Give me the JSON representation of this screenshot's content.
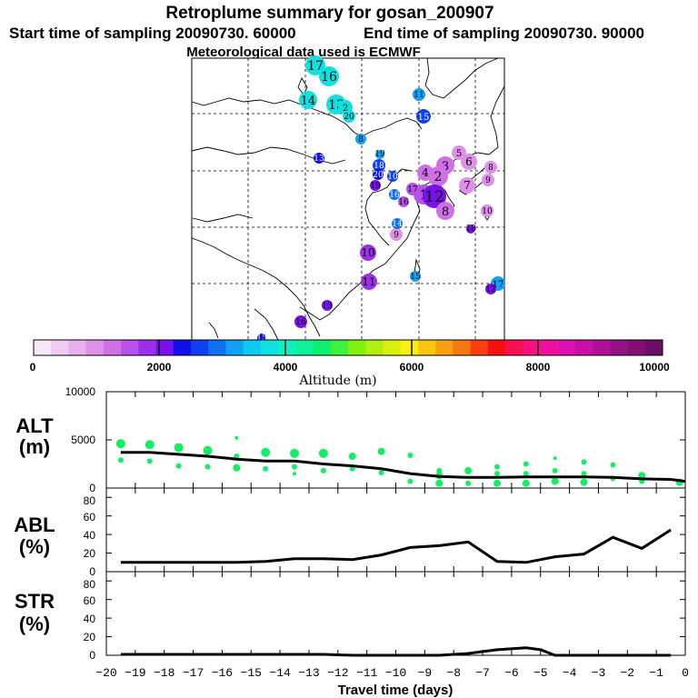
{
  "title": "Retroplume summary for gosan_200907",
  "start_label": "Start time of sampling 20090730. 60000",
  "end_label": "End time of sampling 20090730. 90000",
  "met_label": "Meteorological data used is ECMWF",
  "colors": {
    "palette": [
      "#f6e8f6",
      "#f0ccf0",
      "#e8b0ec",
      "#e090e8",
      "#d070e6",
      "#b850ea",
      "#9a30ea",
      "#7a10ea",
      "#1010ea",
      "#1040f0",
      "#1070f4",
      "#10a0f4",
      "#10c8f4",
      "#10e0e0",
      "#10f0c0",
      "#10f09a",
      "#10f070",
      "#40f040",
      "#80f010",
      "#b0f010",
      "#d8f010",
      "#f8f010",
      "#f8c810",
      "#f8a010",
      "#f87810",
      "#f84010",
      "#f81010",
      "#f81050",
      "#f81080",
      "#f010a0",
      "#e010b0",
      "#c810a8",
      "#b01098",
      "#981088",
      "#801078",
      "#6a1068"
    ],
    "alt_dots": "#10f060",
    "line": "#000000"
  },
  "colorbar": {
    "tick_values": [
      "0",
      "2000",
      "4000",
      "6000",
      "8000",
      "10000"
    ],
    "axis_label": "Altitude (m)"
  },
  "chart_data": [
    {
      "type": "scatter",
      "name": "map-plume-markers",
      "note": "retroplume cluster markers; label = day before release, color = altitude",
      "markers": [
        {
          "label": "17",
          "color_index": 13
        },
        {
          "label": "16",
          "color_index": 13
        },
        {
          "label": "14",
          "color_index": 13
        },
        {
          "label": "13",
          "color_index": 13
        },
        {
          "label": "2",
          "color_index": 13
        },
        {
          "label": "20",
          "color_index": 13
        },
        {
          "label": "11",
          "color_index": 11
        },
        {
          "label": "15",
          "color_index": 9
        },
        {
          "label": "8",
          "color_index": 11
        },
        {
          "label": "19",
          "color_index": 11
        },
        {
          "label": "18",
          "color_index": 9
        },
        {
          "label": "20",
          "color_index": 8
        },
        {
          "label": "10",
          "color_index": 9
        },
        {
          "label": "4",
          "color_index": 4
        },
        {
          "label": "3",
          "color_index": 4
        },
        {
          "label": "5",
          "color_index": 3
        },
        {
          "label": "6",
          "color_index": 3
        },
        {
          "label": "2",
          "color_index": 4
        },
        {
          "label": "1",
          "color_index": 5
        },
        {
          "label": "12",
          "color_index": 7
        },
        {
          "label": "7",
          "color_index": 3
        },
        {
          "label": "8",
          "color_index": 4
        },
        {
          "label": "10",
          "color_index": 3
        },
        {
          "label": "9",
          "color_index": 3
        },
        {
          "label": "9",
          "color_index": 3
        },
        {
          "label": "8",
          "color_index": 3
        },
        {
          "label": "10",
          "color_index": 6
        },
        {
          "label": "11",
          "color_index": 6
        },
        {
          "label": "13",
          "color_index": 8
        },
        {
          "label": "14",
          "color_index": 10
        },
        {
          "label": "16",
          "color_index": 10
        },
        {
          "label": "15",
          "color_index": 11
        },
        {
          "label": "17",
          "color_index": 11
        },
        {
          "label": "12",
          "color_index": 7
        },
        {
          "label": "13",
          "color_index": 7
        },
        {
          "label": "16",
          "color_index": 7
        },
        {
          "label": "18",
          "color_index": 7
        },
        {
          "label": "19",
          "color_index": 7
        },
        {
          "label": "17",
          "color_index": 5
        },
        {
          "label": "16",
          "color_index": 5
        },
        {
          "label": "15",
          "color_index": 8
        }
      ]
    },
    {
      "type": "scatter+line",
      "name": "ALT",
      "ylabel": "ALT (m)",
      "ylim": [
        0,
        10000
      ],
      "yticks": [
        0,
        5000,
        10000
      ],
      "xlim": [
        -20,
        0
      ],
      "line": {
        "x": [
          -19.5,
          -18.5,
          -17.5,
          -16.5,
          -15.5,
          -14.5,
          -13.5,
          -12.5,
          -11.5,
          -10.5,
          -9.5,
          -8.5,
          -7.5,
          -6.5,
          -5.5,
          -4.5,
          -3.5,
          -2.5,
          -1.5,
          -0.5,
          0
        ],
        "y": [
          3700,
          3700,
          3500,
          3300,
          3000,
          2800,
          2800,
          2500,
          2300,
          2000,
          1500,
          1200,
          1100,
          1100,
          1150,
          1150,
          1150,
          1100,
          950,
          900,
          700
        ]
      },
      "points": [
        {
          "x": -19.5,
          "y": 4600,
          "s": 5
        },
        {
          "x": -19.5,
          "y": 2900,
          "s": 3
        },
        {
          "x": -18.5,
          "y": 4500,
          "s": 5
        },
        {
          "x": -18.5,
          "y": 2800,
          "s": 3
        },
        {
          "x": -17.5,
          "y": 4200,
          "s": 5
        },
        {
          "x": -17.5,
          "y": 2300,
          "s": 3
        },
        {
          "x": -16.5,
          "y": 3900,
          "s": 5
        },
        {
          "x": -16.5,
          "y": 2200,
          "s": 3
        },
        {
          "x": -15.5,
          "y": 5200,
          "s": 2
        },
        {
          "x": -15.5,
          "y": 3300,
          "s": 3
        },
        {
          "x": -15.5,
          "y": 2100,
          "s": 4
        },
        {
          "x": -14.5,
          "y": 3700,
          "s": 5
        },
        {
          "x": -14.5,
          "y": 2000,
          "s": 3
        },
        {
          "x": -13.5,
          "y": 3600,
          "s": 5
        },
        {
          "x": -13.5,
          "y": 1500,
          "s": 2
        },
        {
          "x": -13.5,
          "y": 2200,
          "s": 3
        },
        {
          "x": -12.5,
          "y": 3600,
          "s": 5
        },
        {
          "x": -12.5,
          "y": 1800,
          "s": 3
        },
        {
          "x": -11.5,
          "y": 3300,
          "s": 4
        },
        {
          "x": -11.5,
          "y": 2000,
          "s": 3
        },
        {
          "x": -10.5,
          "y": 3800,
          "s": 4
        },
        {
          "x": -10.5,
          "y": 1600,
          "s": 3
        },
        {
          "x": -9.5,
          "y": 3400,
          "s": 3
        },
        {
          "x": -9.5,
          "y": 700,
          "s": 3
        },
        {
          "x": -8.5,
          "y": 1800,
          "s": 3
        },
        {
          "x": -8.5,
          "y": 1300,
          "s": 4
        },
        {
          "x": -8.5,
          "y": 500,
          "s": 4
        },
        {
          "x": -7.5,
          "y": 1800,
          "s": 4
        },
        {
          "x": -7.5,
          "y": 500,
          "s": 3
        },
        {
          "x": -6.5,
          "y": 2200,
          "s": 3
        },
        {
          "x": -6.5,
          "y": 1500,
          "s": 3
        },
        {
          "x": -6.5,
          "y": 500,
          "s": 4
        },
        {
          "x": -5.5,
          "y": 2500,
          "s": 3
        },
        {
          "x": -5.5,
          "y": 1500,
          "s": 3
        },
        {
          "x": -5.5,
          "y": 500,
          "s": 4
        },
        {
          "x": -4.5,
          "y": 3100,
          "s": 2
        },
        {
          "x": -4.5,
          "y": 1800,
          "s": 3
        },
        {
          "x": -4.5,
          "y": 700,
          "s": 4
        },
        {
          "x": -3.5,
          "y": 2700,
          "s": 3
        },
        {
          "x": -3.5,
          "y": 1500,
          "s": 3
        },
        {
          "x": -3.5,
          "y": 600,
          "s": 4
        },
        {
          "x": -2.5,
          "y": 2400,
          "s": 3
        },
        {
          "x": -2.5,
          "y": 1000,
          "s": 3
        },
        {
          "x": -1.5,
          "y": 1300,
          "s": 4
        },
        {
          "x": -1.5,
          "y": 700,
          "s": 3
        },
        {
          "x": -0.2,
          "y": 600,
          "s": 4
        }
      ]
    },
    {
      "type": "line",
      "name": "ABL",
      "ylabel": "ABL (%)",
      "ylim": [
        0,
        90
      ],
      "yticks": [
        0,
        20,
        40,
        60,
        80
      ],
      "xlim": [
        -20,
        0
      ],
      "x": [
        -19.5,
        -18.5,
        -17.5,
        -16.5,
        -15.5,
        -14.5,
        -13.5,
        -12.5,
        -11.5,
        -10.5,
        -9.5,
        -8.5,
        -7.5,
        -6.5,
        -5.5,
        -4.5,
        -3.5,
        -2.5,
        -1.5,
        -0.5
      ],
      "y": [
        10,
        10,
        10,
        10,
        10,
        11,
        14,
        14,
        13,
        18,
        26,
        28,
        32,
        11,
        10,
        16,
        19,
        37,
        25,
        45
      ]
    },
    {
      "type": "line",
      "name": "STR",
      "ylabel": "STR (%)",
      "ylim": [
        0,
        90
      ],
      "yticks": [
        0,
        20,
        40,
        60,
        80
      ],
      "xlim": [
        -20,
        0
      ],
      "x": [
        -19.5,
        -18.5,
        -17.5,
        -16.5,
        -15.5,
        -14.5,
        -13.5,
        -12.5,
        -11.5,
        -10.5,
        -9.5,
        -8.5,
        -7.5,
        -6.5,
        -5.5,
        -5.0,
        -4.5,
        -3.5,
        -2.5,
        -1.5,
        -0.5
      ],
      "y": [
        1,
        1,
        1,
        1,
        1,
        1,
        1,
        1,
        0,
        0,
        0,
        0,
        2,
        6,
        8,
        6,
        0,
        0,
        0,
        0,
        0
      ]
    }
  ],
  "xaxis": {
    "tick_labels": [
      "−20",
      "−19",
      "−18",
      "−17",
      "−16",
      "−15",
      "−14",
      "−13",
      "−12",
      "−11",
      "−10",
      "−9",
      "−8",
      "−7",
      "−6",
      "−5",
      "−4",
      "−3",
      "−2",
      "−1",
      "0"
    ],
    "label": "Travel time (days)"
  },
  "panels": {
    "alt": {
      "label_top": "ALT",
      "label_bot": "(m)",
      "tick_labels": [
        "0",
        "5000",
        "10000"
      ]
    },
    "abl": {
      "label_top": "ABL",
      "label_bot": "(%)",
      "tick_labels": [
        "0",
        "20",
        "40",
        "60",
        "80"
      ]
    },
    "str": {
      "label_top": "STR",
      "label_bot": "(%)",
      "tick_labels": [
        "0",
        "20",
        "40",
        "60",
        "80"
      ]
    }
  }
}
